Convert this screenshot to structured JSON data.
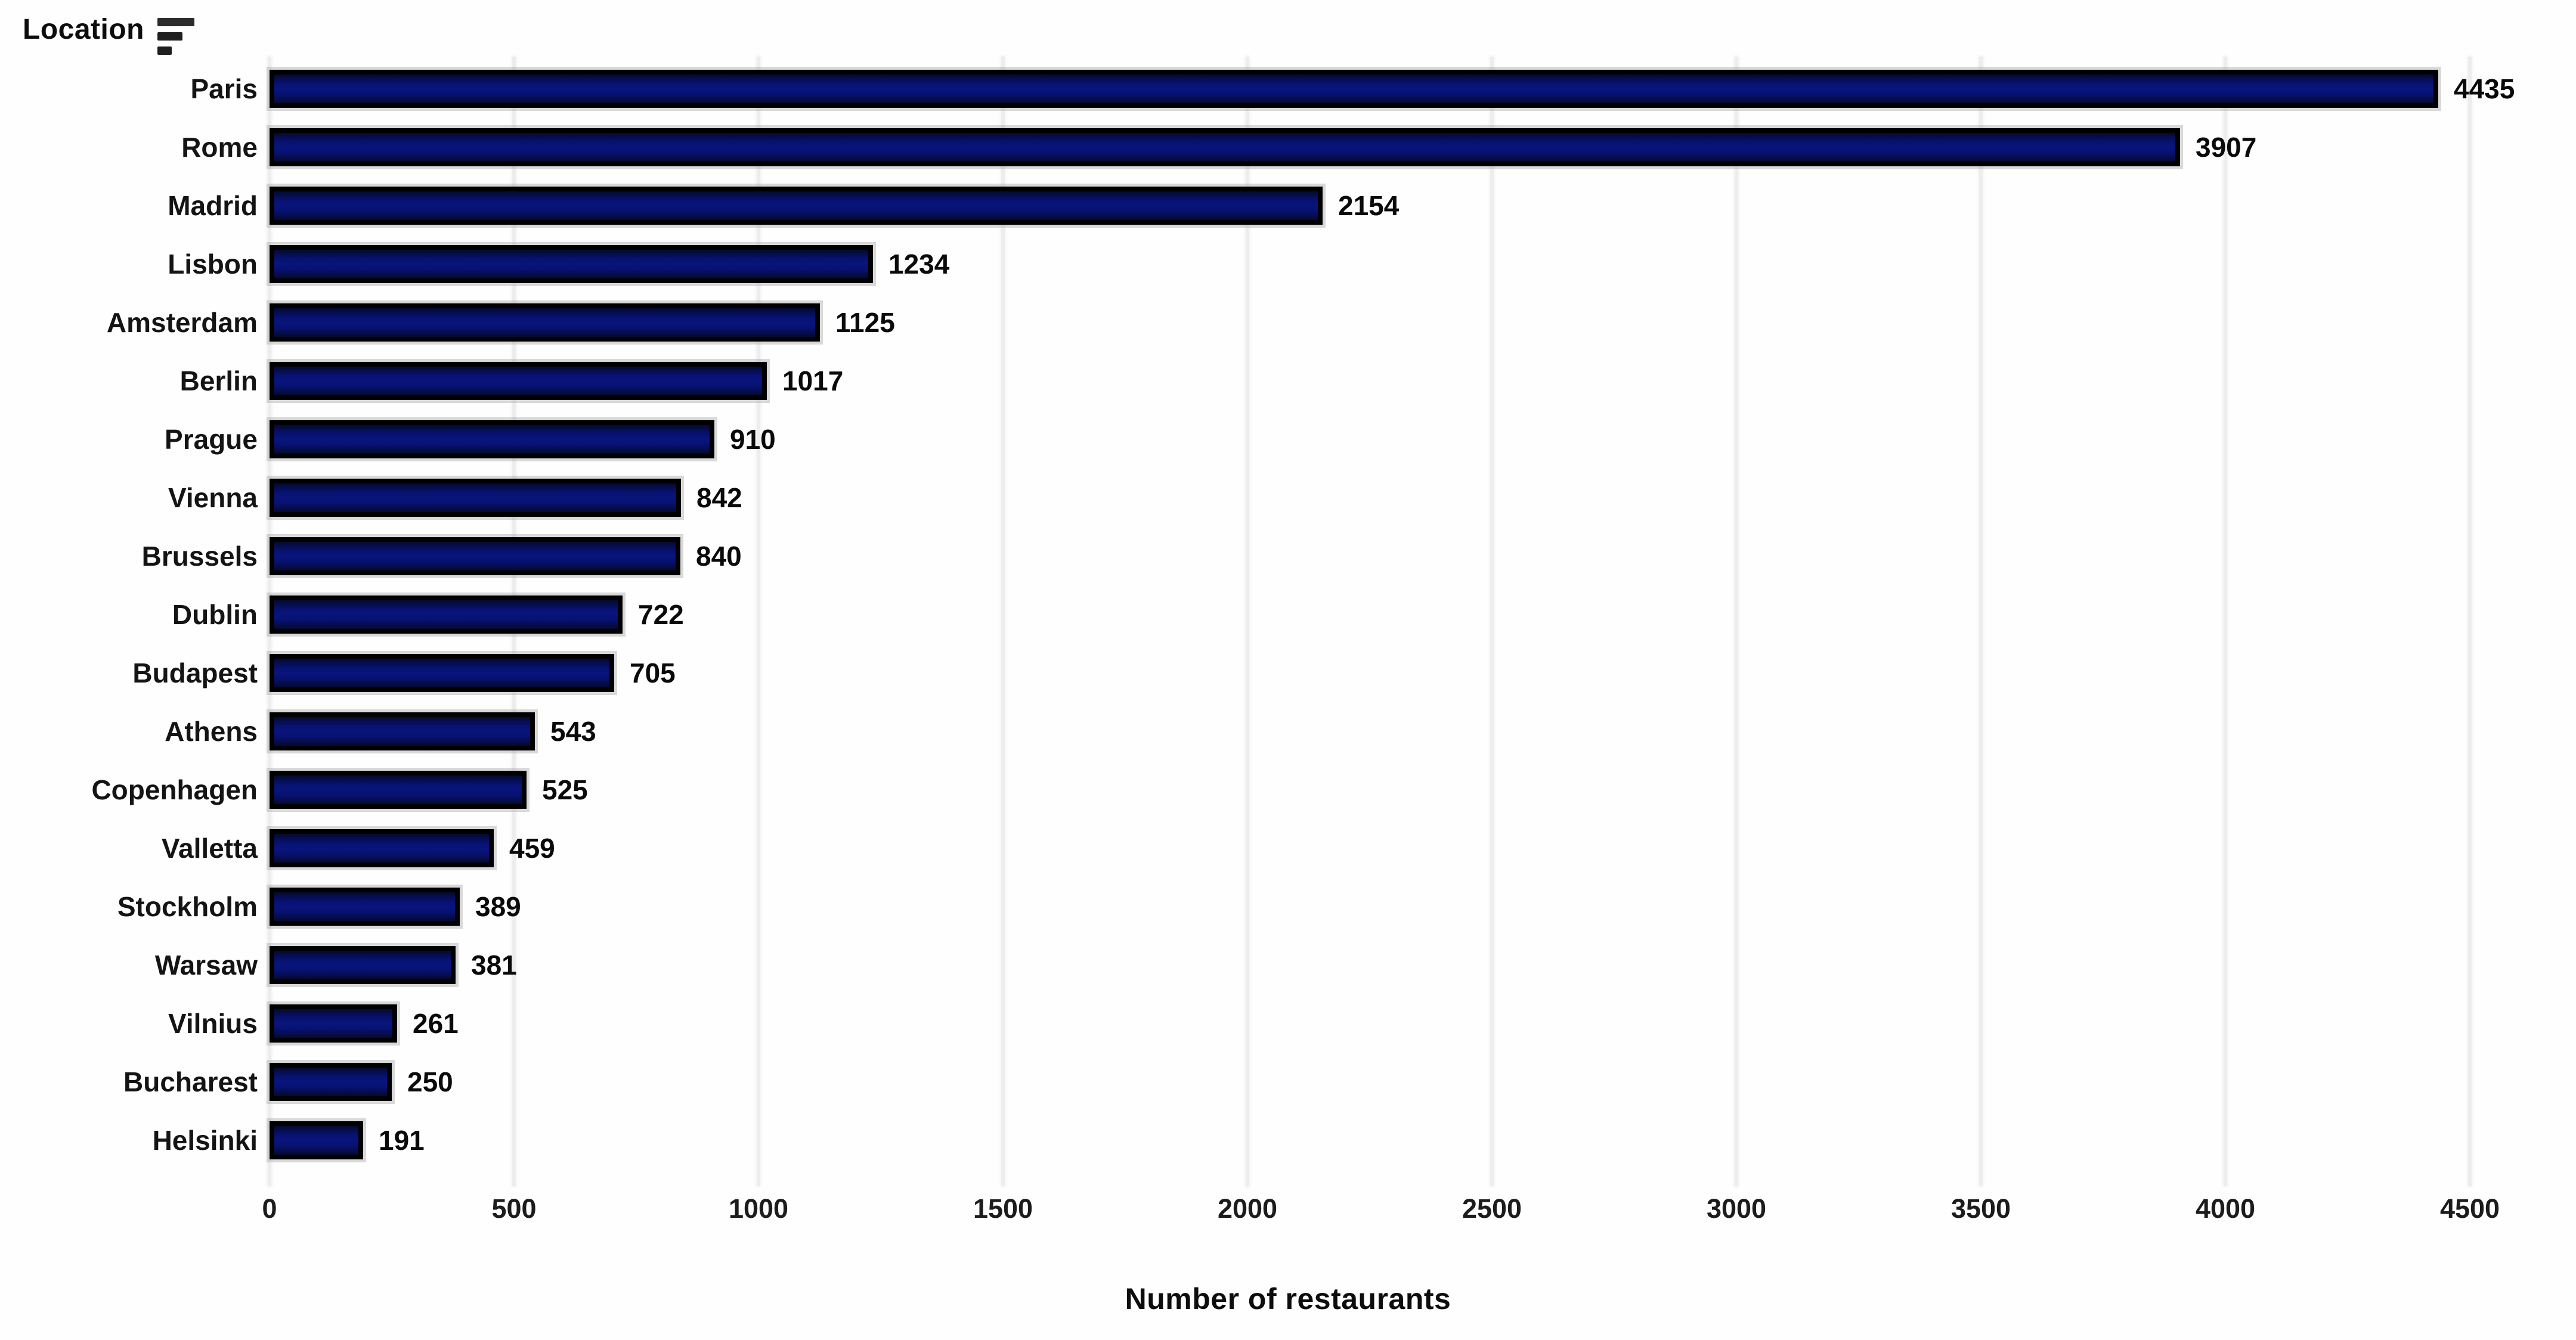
{
  "header": {
    "label": "Location",
    "sort_icon": "sort-descending-icon"
  },
  "chart_data": {
    "type": "bar",
    "orientation": "horizontal",
    "title": "",
    "xlabel": "Number of restaurants",
    "ylabel": "Location",
    "categories": [
      "Paris",
      "Rome",
      "Madrid",
      "Lisbon",
      "Amsterdam",
      "Berlin",
      "Prague",
      "Vienna",
      "Brussels",
      "Dublin",
      "Budapest",
      "Athens",
      "Copenhagen",
      "Valletta",
      "Stockholm",
      "Warsaw",
      "Vilnius",
      "Bucharest",
      "Helsinki"
    ],
    "values": [
      4435,
      3907,
      2154,
      1234,
      1125,
      1017,
      910,
      842,
      840,
      722,
      705,
      543,
      525,
      459,
      389,
      381,
      261,
      250,
      191
    ],
    "value_labels_shown": true,
    "xlim": [
      0,
      4560
    ],
    "xticks": [
      0,
      500,
      1000,
      1500,
      2000,
      2500,
      3000,
      3500,
      4000,
      4500
    ],
    "grid": true,
    "legend": "none",
    "colors": {
      "bar_fill": "#071170",
      "bar_border": "#000000",
      "gridline": "#ededed",
      "text": "#0d0d0d",
      "background": "#fefefe"
    }
  }
}
